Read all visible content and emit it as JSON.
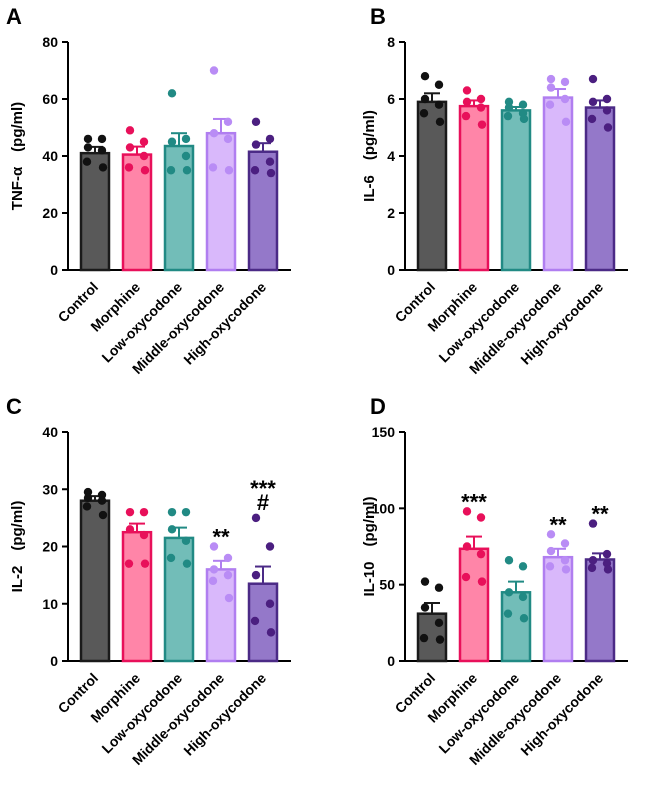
{
  "figure": {
    "categories": [
      "Control",
      "Morphine",
      "Low-oxycodone",
      "Middle-oxycodone",
      "High-oxycodone"
    ],
    "bar_colors": {
      "fill": [
        "#595959",
        "#ff85a8",
        "#72bdb8",
        "#d9b8fb",
        "#9478c9"
      ],
      "stroke": [
        "#1a1a1a",
        "#e8105a",
        "#218a84",
        "#b07ef0",
        "#4b2a86"
      ],
      "dot": [
        "#111111",
        "#e8105a",
        "#218a84",
        "#b98cf5",
        "#4b1f80"
      ]
    }
  },
  "chart_data": [
    {
      "type": "bar",
      "panel": "A",
      "ylabel": "TNF-α　(pg/ml)",
      "ylim": [
        0,
        80
      ],
      "yticks": [
        0,
        20,
        40,
        60,
        80
      ],
      "categories": [
        "Control",
        "Morphine",
        "Low-oxycodone",
        "Middle-oxycodone",
        "High-oxycodone"
      ],
      "values": [
        41,
        40.5,
        43.5,
        48,
        41.5
      ],
      "sem": [
        2.2,
        2.8,
        4.5,
        5,
        3
      ],
      "points": [
        [
          46,
          46,
          43,
          42,
          38,
          36
        ],
        [
          49,
          45,
          43,
          40,
          36,
          35
        ],
        [
          62,
          46,
          45,
          40,
          35,
          35
        ],
        [
          70,
          52,
          48,
          46,
          36,
          35
        ],
        [
          52,
          46,
          44,
          38,
          35,
          34
        ]
      ],
      "significance": [
        "",
        "",
        "",
        "",
        ""
      ]
    },
    {
      "type": "bar",
      "panel": "B",
      "ylabel": "IL-6　(pg/ml)",
      "ylim": [
        0,
        8
      ],
      "yticks": [
        0,
        2,
        4,
        6,
        8
      ],
      "categories": [
        "Control",
        "Morphine",
        "Low-oxycodone",
        "Middle-oxycodone",
        "High-oxycodone"
      ],
      "values": [
        5.9,
        5.75,
        5.6,
        6.05,
        5.7
      ],
      "sem": [
        0.3,
        0.2,
        0.12,
        0.3,
        0.25
      ],
      "points": [
        [
          6.8,
          6.5,
          6.0,
          5.8,
          5.5,
          5.2
        ],
        [
          6.3,
          6.0,
          5.9,
          5.7,
          5.4,
          5.1
        ],
        [
          5.9,
          5.8,
          5.7,
          5.5,
          5.4,
          5.3
        ],
        [
          6.7,
          6.6,
          6.4,
          6.0,
          5.8,
          5.2
        ],
        [
          6.7,
          6.0,
          5.9,
          5.6,
          5.3,
          5.0
        ]
      ],
      "significance": [
        "",
        "",
        "",
        "",
        ""
      ]
    },
    {
      "type": "bar",
      "panel": "C",
      "ylabel": "IL-2　(pg/ml)",
      "ylim": [
        0,
        40
      ],
      "yticks": [
        0,
        10,
        20,
        30,
        40
      ],
      "categories": [
        "Control",
        "Morphine",
        "Low-oxycodone",
        "Middle-oxycodone",
        "High-oxycodone"
      ],
      "values": [
        28,
        22.5,
        21.5,
        16,
        13.5
      ],
      "sem": [
        0.8,
        1.5,
        1.8,
        1.5,
        3
      ],
      "points": [
        [
          29.5,
          29,
          28.5,
          28,
          27,
          25.5
        ],
        [
          26,
          26,
          23,
          22,
          17,
          17
        ],
        [
          26,
          26,
          23,
          21,
          18,
          17
        ],
        [
          20,
          18,
          16,
          15,
          14,
          11
        ],
        [
          25,
          20,
          15,
          10,
          7,
          5
        ]
      ],
      "significance": [
        "",
        "",
        "",
        "**",
        "***\n#"
      ]
    },
    {
      "type": "bar",
      "panel": "D",
      "ylabel": "IL-10　(pg/ml)",
      "ylim": [
        0,
        150
      ],
      "yticks": [
        0,
        50,
        100,
        150
      ],
      "categories": [
        "Control",
        "Morphine",
        "Low-oxycodone",
        "Middle-oxycodone",
        "High-oxycodone"
      ],
      "values": [
        31,
        73.5,
        45,
        68,
        66.5
      ],
      "sem": [
        7,
        8,
        7,
        5.5,
        4
      ],
      "points": [
        [
          52,
          48,
          35,
          25,
          15,
          14
        ],
        [
          98,
          94,
          75,
          70,
          55,
          52
        ],
        [
          66,
          62,
          45,
          42,
          31,
          28
        ],
        [
          83,
          77,
          72,
          66,
          62,
          60
        ],
        [
          90,
          70,
          66,
          64,
          61,
          60
        ]
      ],
      "significance": [
        "",
        "***",
        "",
        "**",
        "**"
      ]
    }
  ]
}
